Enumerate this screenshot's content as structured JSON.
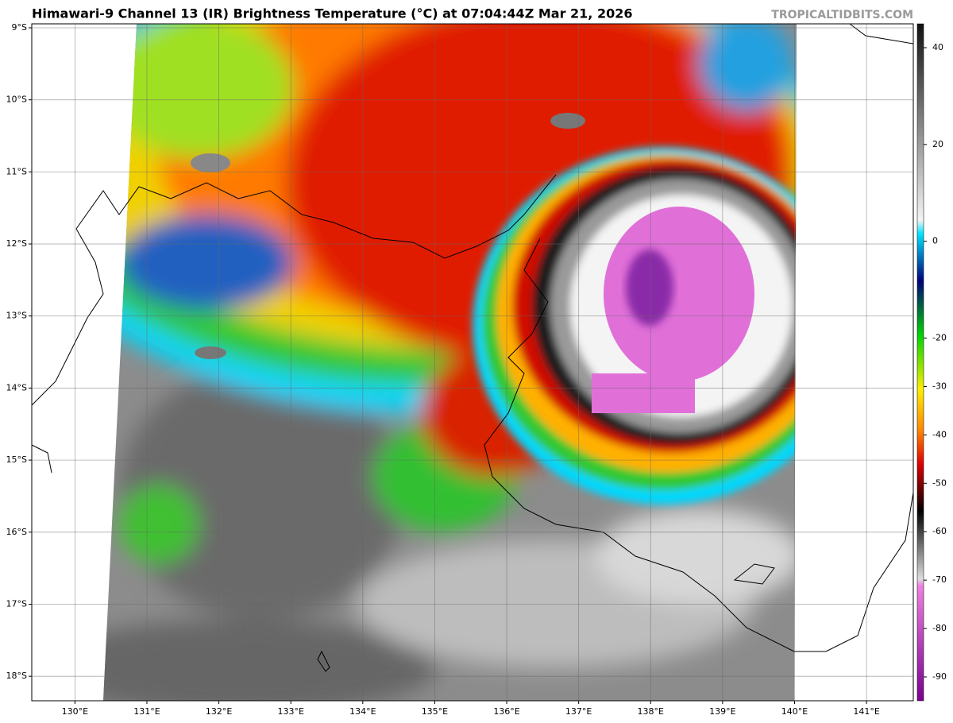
{
  "title": "Himawari-9 Channel 13 (IR) Brightness Temperature (°C) at 07:04:44Z Mar 21, 2026",
  "watermark": "TROPICALTIDBITS.COM",
  "map": {
    "lonlim": [
      129.4,
      141.65
    ],
    "latlim": [
      -18.34,
      -8.945
    ],
    "lonticks": [
      {
        "value": 130,
        "label": "130°E"
      },
      {
        "value": 131,
        "label": "131°E"
      },
      {
        "value": 132,
        "label": "132°E"
      },
      {
        "value": 133,
        "label": "133°E"
      },
      {
        "value": 134,
        "label": "134°E"
      },
      {
        "value": 135,
        "label": "135°E"
      },
      {
        "value": 136,
        "label": "136°E"
      },
      {
        "value": 137,
        "label": "137°E"
      },
      {
        "value": 138,
        "label": "138°E"
      },
      {
        "value": 139,
        "label": "139°E"
      },
      {
        "value": 140,
        "label": "140°E"
      },
      {
        "value": 141,
        "label": "141°E"
      }
    ],
    "latticks": [
      {
        "value": -9,
        "label": "9°S"
      },
      {
        "value": -10,
        "label": "10°S"
      },
      {
        "value": -11,
        "label": "11°S"
      },
      {
        "value": -12,
        "label": "12°S"
      },
      {
        "value": -13,
        "label": "13°S"
      },
      {
        "value": -14,
        "label": "14°S"
      },
      {
        "value": -15,
        "label": "15°S"
      },
      {
        "value": -16,
        "label": "16°S"
      },
      {
        "value": -17,
        "label": "17°S"
      },
      {
        "value": -18,
        "label": "18°S"
      }
    ],
    "grid": true
  },
  "colorbar": {
    "lim": [
      -90,
      40
    ],
    "ticks": [
      40,
      20,
      0,
      -20,
      -30,
      -40,
      -50,
      -60,
      -70,
      -80,
      -90
    ]
  }
}
